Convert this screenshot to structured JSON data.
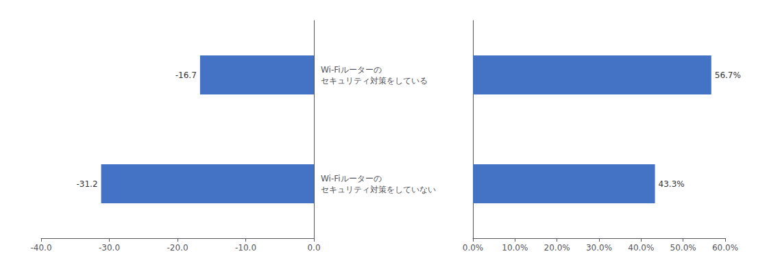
{
  "chart_data": [
    {
      "type": "bar",
      "orientation": "horizontal",
      "categories": [
        "Wi-Fiルーターの\nセキュリティ対策をしている",
        "Wi-Fiルーターの\nセキュリティ対策をしていない"
      ],
      "values": [
        -16.7,
        -31.2
      ],
      "color": "#4472C4",
      "xlim": [
        -40,
        0
      ],
      "xticks": [
        {
          "value": -40,
          "label": "-40.0"
        },
        {
          "value": -30,
          "label": "-30.0"
        },
        {
          "value": -20,
          "label": "-20.0"
        },
        {
          "value": -10,
          "label": "-10.0"
        },
        {
          "value": 0,
          "label": "0.0"
        }
      ],
      "data_labels": true,
      "grid": false
    },
    {
      "type": "bar",
      "orientation": "horizontal",
      "categories": [
        "Wi-Fiルーターの\nセキュリティ対策をしている",
        "Wi-Fiルーターの\nセキュリティ対策をしていない"
      ],
      "values": [
        0.567,
        0.433
      ],
      "value_labels": [
        "56.7%",
        "43.3%"
      ],
      "color": "#4472C4",
      "xlim": [
        0,
        0.6
      ],
      "xticks": [
        {
          "value": 0,
          "label": "0.0%"
        },
        {
          "value": 0.1,
          "label": "10.0%"
        },
        {
          "value": 0.2,
          "label": "20.0%"
        },
        {
          "value": 0.3,
          "label": "30.0%"
        },
        {
          "value": 0.4,
          "label": "40.0%"
        },
        {
          "value": 0.5,
          "label": "50.0%"
        },
        {
          "value": 0.6,
          "label": "60.0%"
        }
      ],
      "data_labels": true,
      "tick_labels": "x",
      "grid": false
    }
  ]
}
